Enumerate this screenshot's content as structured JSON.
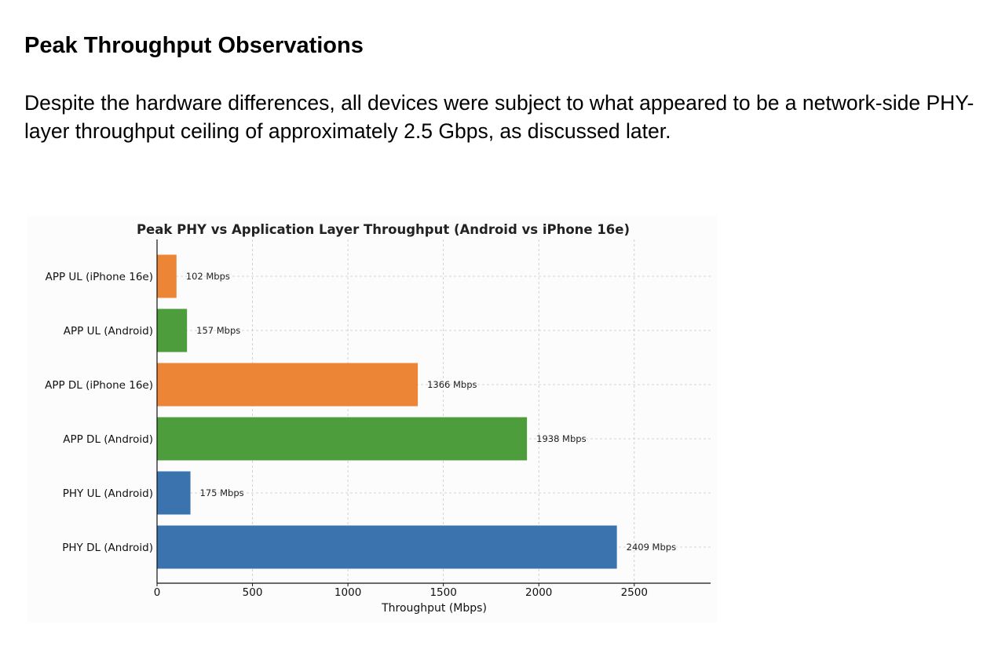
{
  "section": {
    "heading": "Peak Throughput Observations",
    "paragraph": "Despite the hardware differences, all devices were subject to what appeared to be a network-side PHY-layer throughput ceiling of approximately 2.5 Gbps, as discussed later."
  },
  "chart_data": {
    "type": "bar",
    "orientation": "horizontal",
    "title": "Peak PHY vs Application Layer Throughput (Android vs iPhone 16e)",
    "xlabel": "Throughput (Mbps)",
    "ylabel": "",
    "xlim": [
      0,
      2900
    ],
    "xticks": [
      0,
      500,
      1000,
      1500,
      2000,
      2500
    ],
    "grid": true,
    "categories": [
      "APP UL (iPhone 16e)",
      "APP UL (Android)",
      "APP DL (iPhone 16e)",
      "APP DL (Android)",
      "PHY UL (Android)",
      "PHY DL (Android)"
    ],
    "values": [
      102,
      157,
      1366,
      1938,
      175,
      2409
    ],
    "value_labels": [
      "102 Mbps",
      "157 Mbps",
      "1366 Mbps",
      "1938 Mbps",
      "175 Mbps",
      "2409 Mbps"
    ],
    "bar_colors": [
      "#ED8537",
      "#4E9D3C",
      "#ED8537",
      "#4E9D3C",
      "#3B73AE",
      "#3B73AE"
    ]
  }
}
